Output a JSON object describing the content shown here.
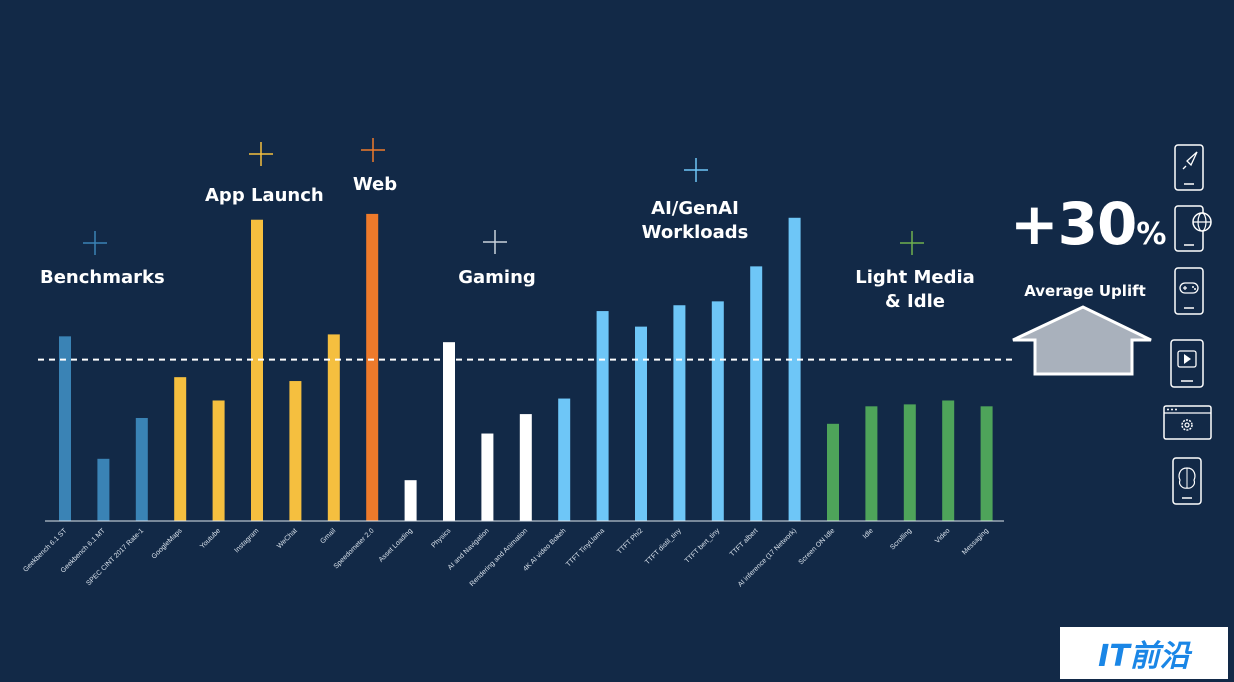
{
  "chart_data": {
    "type": "bar",
    "categories": [
      "Geekbench 6.1 ST",
      "Geekbench 6.1 MT",
      "SPEC CINT 2017 Rate-1",
      "GoogleMaps",
      "Youtube",
      "Instagram",
      "WeChat",
      "Gmail",
      "Speedometer 2.0",
      "Asset Loading",
      "Physics",
      "AI and Navigation",
      "Rendering and Animation",
      "4K AI video Bokeh",
      "TTFT TinyLlama",
      "TTFT Phi2",
      "TTFT distil_tiny",
      "TTFT bert_tiny",
      "TTFT albert",
      "AI inference (17 Network)",
      "Screen ON Idle",
      "Idle",
      "Scrolling",
      "Video",
      "Messaging"
    ],
    "values": [
      0.95,
      0.32,
      0.53,
      0.74,
      0.62,
      1.55,
      0.72,
      0.96,
      1.58,
      0.21,
      0.92,
      0.45,
      0.55,
      0.63,
      1.08,
      1.0,
      1.11,
      1.13,
      1.31,
      1.56,
      0.5,
      0.59,
      0.6,
      0.62,
      0.59
    ],
    "colors": [
      "#3a83b5",
      "#3a83b5",
      "#3a83b5",
      "#f5bf3f",
      "#f5bf3f",
      "#f5bf3f",
      "#f5bf3f",
      "#f5bf3f",
      "#ee7a2b",
      "#ffffff",
      "#ffffff",
      "#ffffff",
      "#ffffff",
      "#6ec6f7",
      "#6ec6f7",
      "#6ec6f7",
      "#6ec6f7",
      "#6ec6f7",
      "#6ec6f7",
      "#6ec6f7",
      "#4ea45a",
      "#4ea45a",
      "#4ea45a",
      "#4ea45a",
      "#4ea45a"
    ],
    "reference_line": 0.83,
    "ylim": [
      0,
      1.65
    ],
    "groups": [
      {
        "label": "Benchmarks",
        "color": "#3a83b5"
      },
      {
        "label": "App Launch",
        "color": "#f5bf3f"
      },
      {
        "label": "Web",
        "color": "#ee7a2b"
      },
      {
        "label": "Gaming",
        "color": "#c9d2dc"
      },
      {
        "label": "AI/GenAI\nWorkloads",
        "color": "#6ec6f7"
      },
      {
        "label": "Light Media\n& Idle",
        "color": "#6fb04f"
      }
    ],
    "xlabel": "",
    "ylabel": "",
    "title": ""
  },
  "uplift": {
    "value": "+30",
    "unit": "%",
    "label": "Average Uplift"
  },
  "icons": [
    "rocket-icon",
    "globe-icon",
    "gamepad-icon",
    "play-icon",
    "gear-icon",
    "brain-icon"
  ],
  "watermark": "IT前沿"
}
